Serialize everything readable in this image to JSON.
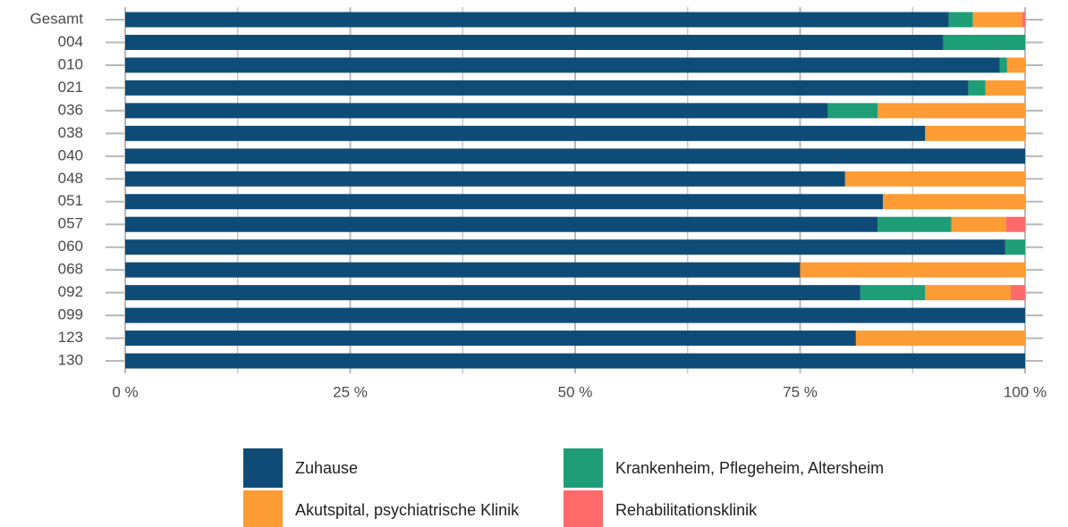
{
  "chart_data": {
    "type": "stacked-barh",
    "categories": [
      "Gesamt",
      "004",
      "010",
      "021",
      "036",
      "038",
      "040",
      "048",
      "051",
      "057",
      "060",
      "068",
      "092",
      "099",
      "123",
      "130"
    ],
    "series": [
      {
        "name": "Zuhause",
        "color": "#0e4c77",
        "values": [
          91.5,
          90.9,
          97.2,
          93.7,
          78.1,
          88.9,
          100,
          80.0,
          84.2,
          83.6,
          97.8,
          75.0,
          81.7,
          100,
          81.2,
          100
        ]
      },
      {
        "name": "Krankenheim, Pflegeheim, Altersheim",
        "color": "#1e9e76",
        "values": [
          2.7,
          9.1,
          0.8,
          1.9,
          5.5,
          0,
          0,
          0,
          0,
          8.2,
          2.2,
          0,
          7.2,
          0,
          0,
          0
        ]
      },
      {
        "name": "Akutspital, psychiatrische Klinik",
        "color": "#fd9b35",
        "values": [
          5.5,
          0,
          2.0,
          4.4,
          16.4,
          11.1,
          0,
          20.0,
          15.8,
          6.1,
          0,
          25.0,
          9.5,
          0,
          18.8,
          0
        ]
      },
      {
        "name": "Rehabilitationsklinik",
        "color": "#fe6a6a",
        "values": [
          0.3,
          0,
          0,
          0,
          0,
          0,
          0,
          0,
          0,
          2.1,
          0,
          0,
          1.6,
          0,
          0,
          0
        ]
      }
    ],
    "xlim": [
      0,
      100
    ],
    "xticks": [
      {
        "value": 0,
        "label": "0 %"
      },
      {
        "value": 25,
        "label": "25 %"
      },
      {
        "value": 50,
        "label": "50 %"
      },
      {
        "value": 75,
        "label": "75 %"
      },
      {
        "value": 100,
        "label": "100 %"
      }
    ],
    "minor_xticks": [
      12.5,
      37.5,
      62.5,
      87.5
    ],
    "grid": true,
    "legend": "bottom"
  }
}
